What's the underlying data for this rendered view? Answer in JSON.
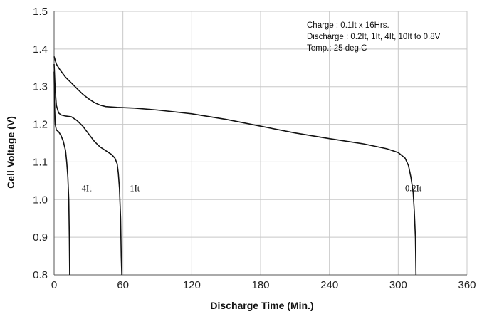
{
  "chart_data": {
    "type": "line",
    "xlabel": "Discharge Time (Min.)",
    "ylabel": "Cell Voltage (V)",
    "xlim": [
      0,
      360
    ],
    "ylim": [
      0.8,
      1.5
    ],
    "xticks": [
      0,
      60,
      120,
      180,
      240,
      300,
      360
    ],
    "yticks": [
      0.8,
      0.9,
      1.0,
      1.1,
      1.2,
      1.3,
      1.4,
      1.5
    ],
    "ytick_labels": [
      "0.8",
      "0.9",
      "1.0",
      "1.1",
      "1.2",
      "1.3",
      "1.4",
      "1.5"
    ],
    "grid": true,
    "annotations": [
      "Charge : 0.1It x 16Hrs.",
      "Discharge : 0.2It, 1It, 4It, 10It to 0.8V",
      "Temp.: 25 deg.C"
    ],
    "series": [
      {
        "name": "0.2It",
        "label_at": [
          306,
          1.03
        ],
        "points": [
          [
            0,
            1.38
          ],
          [
            2,
            1.36
          ],
          [
            5,
            1.345
          ],
          [
            10,
            1.325
          ],
          [
            15,
            1.31
          ],
          [
            20,
            1.295
          ],
          [
            25,
            1.28
          ],
          [
            30,
            1.268
          ],
          [
            35,
            1.258
          ],
          [
            40,
            1.251
          ],
          [
            45,
            1.247
          ],
          [
            55,
            1.245
          ],
          [
            70,
            1.243
          ],
          [
            90,
            1.238
          ],
          [
            120,
            1.228
          ],
          [
            150,
            1.213
          ],
          [
            180,
            1.195
          ],
          [
            210,
            1.177
          ],
          [
            240,
            1.162
          ],
          [
            270,
            1.148
          ],
          [
            290,
            1.135
          ],
          [
            300,
            1.125
          ],
          [
            306,
            1.11
          ],
          [
            309,
            1.09
          ],
          [
            311,
            1.06
          ],
          [
            313,
            1.02
          ],
          [
            314,
            0.97
          ],
          [
            315,
            0.9
          ],
          [
            315.5,
            0.8
          ]
        ]
      },
      {
        "name": "1It",
        "label_at": [
          66,
          1.03
        ],
        "points": [
          [
            0,
            1.36
          ],
          [
            1,
            1.29
          ],
          [
            2,
            1.25
          ],
          [
            4,
            1.23
          ],
          [
            6,
            1.225
          ],
          [
            10,
            1.222
          ],
          [
            15,
            1.22
          ],
          [
            20,
            1.21
          ],
          [
            25,
            1.195
          ],
          [
            30,
            1.175
          ],
          [
            35,
            1.155
          ],
          [
            40,
            1.14
          ],
          [
            45,
            1.13
          ],
          [
            50,
            1.12
          ],
          [
            53,
            1.11
          ],
          [
            55,
            1.095
          ],
          [
            56,
            1.07
          ],
          [
            57,
            1.03
          ],
          [
            58,
            0.95
          ],
          [
            58.5,
            0.85
          ],
          [
            59,
            0.8
          ]
        ]
      },
      {
        "name": "4It",
        "label_at": [
          24,
          1.03
        ],
        "points": [
          [
            0,
            1.34
          ],
          [
            0.5,
            1.24
          ],
          [
            1,
            1.2
          ],
          [
            2,
            1.185
          ],
          [
            4,
            1.18
          ],
          [
            6,
            1.17
          ],
          [
            8,
            1.155
          ],
          [
            10,
            1.13
          ],
          [
            11,
            1.1
          ],
          [
            12,
            1.06
          ],
          [
            12.8,
            1.0
          ],
          [
            13.3,
            0.9
          ],
          [
            13.6,
            0.8
          ]
        ]
      }
    ]
  }
}
